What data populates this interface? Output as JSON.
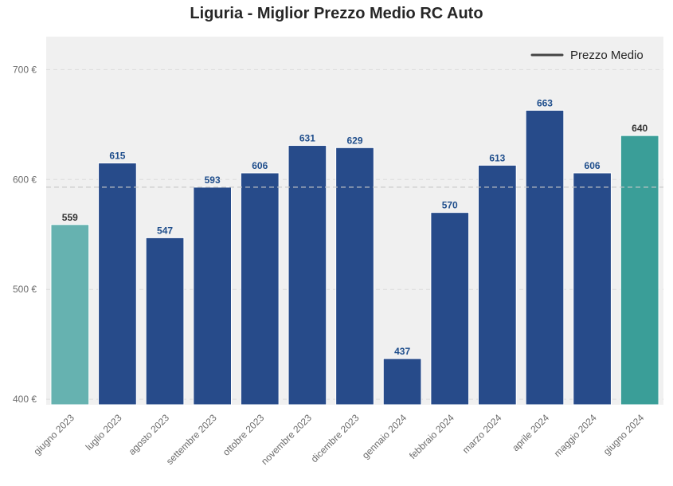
{
  "chart_data": {
    "type": "bar",
    "title": "Liguria - Miglior Prezzo Medio RC Auto",
    "xlabel": "",
    "ylabel": "",
    "categories": [
      "giugno 2023",
      "luglio 2023",
      "agosto 2023",
      "settembre 2023",
      "ottobre 2023",
      "novembre 2023",
      "dicembre 2023",
      "gennaio 2024",
      "febbraio 2024",
      "marzo 2024",
      "aprile 2024",
      "maggio 2024",
      "giugno 2024"
    ],
    "values": [
      559,
      615,
      547,
      593,
      606,
      631,
      629,
      437,
      570,
      613,
      663,
      606,
      640
    ],
    "value_labels": [
      "559",
      "615",
      "547",
      "593",
      "606",
      "631",
      "629",
      "437",
      "570",
      "613",
      "663",
      "606",
      "640"
    ],
    "bar_colors": [
      "#66b2b0",
      "#274b8a",
      "#274b8a",
      "#274b8a",
      "#274b8a",
      "#274b8a",
      "#274b8a",
      "#274b8a",
      "#274b8a",
      "#274b8a",
      "#274b8a",
      "#274b8a",
      "#3a9e98"
    ],
    "label_colors": [
      "#333333",
      "#1f4e8c",
      "#1f4e8c",
      "#1f4e8c",
      "#1f4e8c",
      "#1f4e8c",
      "#1f4e8c",
      "#1f4e8c",
      "#1f4e8c",
      "#1f4e8c",
      "#1f4e8c",
      "#1f4e8c",
      "#333333"
    ],
    "ylim": [
      395,
      730
    ],
    "yticks": [
      400,
      500,
      600,
      700
    ],
    "ytick_labels": [
      "400 €",
      "500 €",
      "600 €",
      "700 €"
    ],
    "mean_line": 593,
    "legend": {
      "entries": [
        "Prezzo Medio"
      ],
      "placement": "top-right",
      "line_color": "#444444"
    },
    "grid": true,
    "colors": {
      "plot_background": "#f0f0f0",
      "grid": "#dcdcdc",
      "mean_line": "#c8c8c8"
    }
  }
}
